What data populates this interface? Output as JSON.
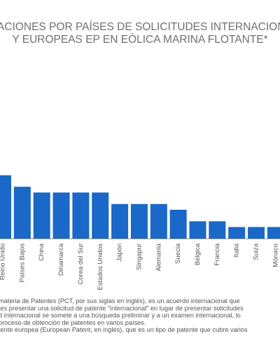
{
  "chart_data": {
    "type": "bar",
    "title": [
      "ACIONES POR PAÍSES DE SOLICITUDES INTERNACIONAL",
      "Y EUROPEAS EP EN EÓLICA MARINA FLOTANTE*"
    ],
    "categories": [
      "Reino Unido",
      "Países Bajos",
      "China",
      "Dinamarca",
      "Corea del Sur",
      "Estados Unidos",
      "Japón",
      "Singapur",
      "Alemania",
      "Suecia",
      "Bélgica",
      "Francia",
      "Italia",
      "Suiza",
      "Mónaco"
    ],
    "values": [
      11,
      9,
      8,
      8,
      8,
      8,
      6,
      6,
      6,
      5,
      3,
      3,
      2,
      2,
      2
    ],
    "color": "#1a68c8",
    "notes": [
      "materia de Patentes (PCT, por sus siglas en inglés), es un acuerdo internacional que",
      "tes presentar una solicitud de patente \"internacional\" en lugar de presentar solicitudes",
      "d internacional se somete a una búsqueda preliminar y a un examen internacional, lo",
      "proceso de obtención de patentes en varios países.",
      "tente europea (European Patent, en inglés), que es un tipo de patente que cubre varios"
    ]
  }
}
